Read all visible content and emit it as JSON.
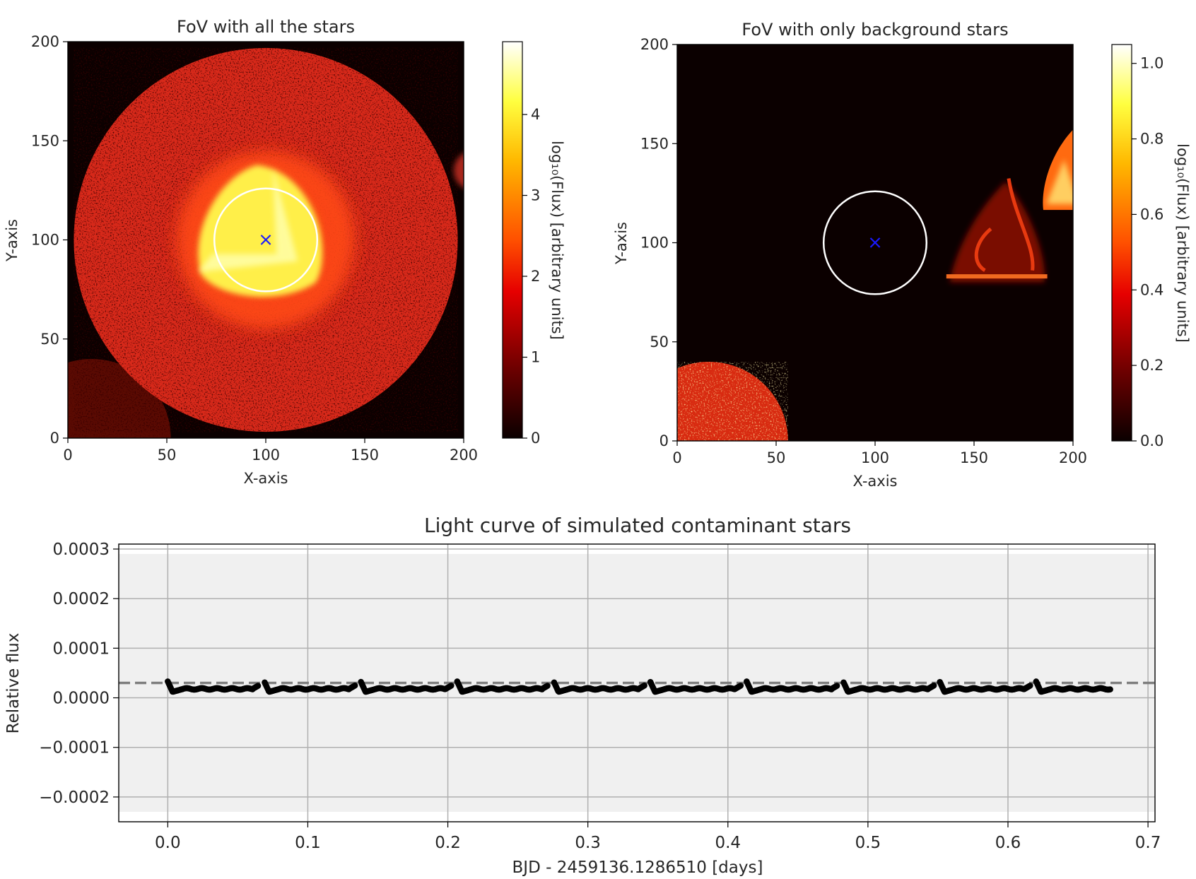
{
  "chart_data": [
    {
      "type": "heatmap",
      "title": "FoV with all the stars",
      "xlabel": "X-axis",
      "ylabel": "Y-axis",
      "xlim": [
        0,
        200
      ],
      "ylim": [
        0,
        200
      ],
      "xticks": [
        "0",
        "50",
        "100",
        "150",
        "200"
      ],
      "yticks": [
        "0",
        "50",
        "100",
        "150",
        "200"
      ],
      "colorbar": {
        "label": "log₁₀(Flux) [arbitrary units]",
        "range": [
          0,
          4.9
        ],
        "ticks": [
          "0",
          "1",
          "2",
          "3",
          "4"
        ],
        "colormap": "hot"
      },
      "target_marker": {
        "symbol": "×",
        "x": 100,
        "y": 100,
        "color": "#1a1aff"
      },
      "aperture": {
        "center": [
          100,
          100
        ],
        "radius": 26,
        "color": "#ffffff"
      },
      "features": [
        {
          "name": "main-star-field",
          "center": [
            100,
            100
          ],
          "radius": 97,
          "level": 1.9
        },
        {
          "name": "target-glow",
          "center": [
            100,
            100
          ],
          "radius": 45,
          "level": 2.6
        },
        {
          "name": "target-core",
          "center": [
            100,
            100
          ],
          "radius": 18,
          "level": 4.3
        },
        {
          "name": "corner-star",
          "center": [
            12,
            0
          ],
          "radius": 40,
          "level": 1.2
        },
        {
          "name": "edge-star",
          "center": [
            205,
            135
          ],
          "radius": 10,
          "level": 1.4
        }
      ]
    },
    {
      "type": "heatmap",
      "title": "FoV with only background stars",
      "xlabel": "X-axis",
      "ylabel": "Y-axis",
      "xlim": [
        0,
        200
      ],
      "ylim": [
        0,
        200
      ],
      "xticks": [
        "0",
        "50",
        "100",
        "150",
        "200"
      ],
      "yticks": [
        "0",
        "50",
        "100",
        "150",
        "200"
      ],
      "colorbar": {
        "label": "log₁₀(Flux) [arbitrary units]",
        "range": [
          0,
          1.05
        ],
        "ticks": [
          "0.0",
          "0.2",
          "0.4",
          "0.6",
          "0.8",
          "1.0"
        ],
        "colormap": "hot"
      },
      "target_marker": {
        "symbol": "×",
        "x": 100,
        "y": 100,
        "color": "#1a1aff"
      },
      "aperture": {
        "center": [
          100,
          100
        ],
        "radius": 26,
        "color": "#ffffff"
      },
      "features": [
        {
          "name": "corner-star",
          "center": [
            16,
            0
          ],
          "radius": 40,
          "level": 0.65
        },
        {
          "name": "contaminant-star",
          "center": [
            163,
            98
          ],
          "radius": 15,
          "level": 0.4
        },
        {
          "name": "edge-star",
          "center": [
            203,
            133
          ],
          "radius": 15,
          "level": 0.7
        }
      ]
    },
    {
      "type": "scatter",
      "title": "Light curve of simulated contaminant stars",
      "xlabel": "BJD - 2459136.1286510 [days]",
      "ylabel": "Relative flux",
      "xlim": [
        -0.035,
        0.705
      ],
      "ylim": [
        -0.00025,
        0.00031
      ],
      "shaded_band": [
        -0.00023,
        0.00029
      ],
      "xticks": [
        "0.0",
        "0.1",
        "0.2",
        "0.3",
        "0.4",
        "0.5",
        "0.6",
        "0.7"
      ],
      "xtick_values": [
        0.0,
        0.1,
        0.2,
        0.3,
        0.4,
        0.5,
        0.6,
        0.7
      ],
      "yticks": [
        "−0.0002",
        "−0.0001",
        "0.0000",
        "0.0001",
        "0.0002",
        "0.0003"
      ],
      "ytick_values": [
        -0.0002,
        -0.0001,
        0.0,
        0.0001,
        0.0002,
        0.0003
      ],
      "grid": true,
      "mean_line": {
        "y": 3e-05,
        "style": "dashed",
        "color": "#7f7f7f"
      },
      "series": {
        "name": "contaminant flux",
        "color": "#000000",
        "x_start": 0.0,
        "x_end": 0.673,
        "period": 0.0689,
        "baseline": 1.8e-05,
        "peak": 3.3e-05,
        "dip": 1.2e-05,
        "gap_fraction": 0.16
      }
    }
  ]
}
